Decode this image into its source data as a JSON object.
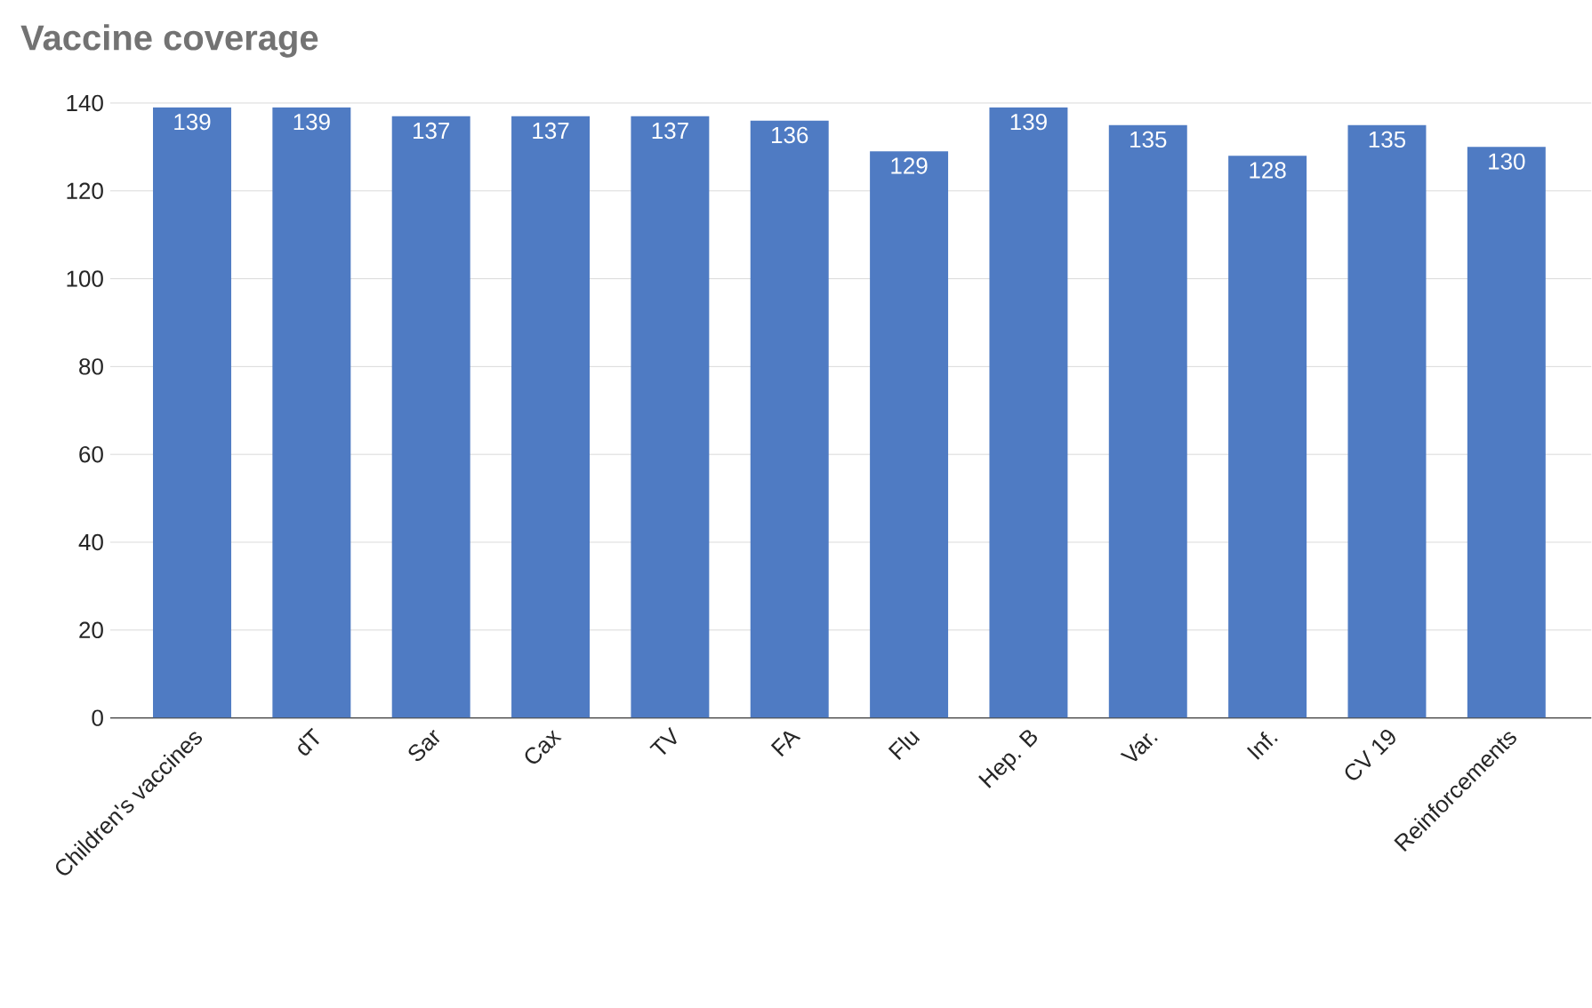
{
  "chart_data": {
    "type": "bar",
    "title": "Vaccine coverage",
    "categories": [
      "Children's vaccines",
      "dT",
      "Sar",
      "Cax",
      "TV",
      "FA",
      "Flu",
      "Hep. B",
      "Var.",
      "Inf.",
      "CV 19",
      "Reinforcements"
    ],
    "values": [
      139,
      139,
      137,
      137,
      137,
      136,
      129,
      139,
      135,
      128,
      135,
      130
    ],
    "color": "#4f7bc3",
    "ylim": [
      0,
      140
    ],
    "yticks": [
      0,
      20,
      40,
      60,
      80,
      100,
      120,
      140
    ],
    "grid": "y",
    "data_labels": true
  }
}
